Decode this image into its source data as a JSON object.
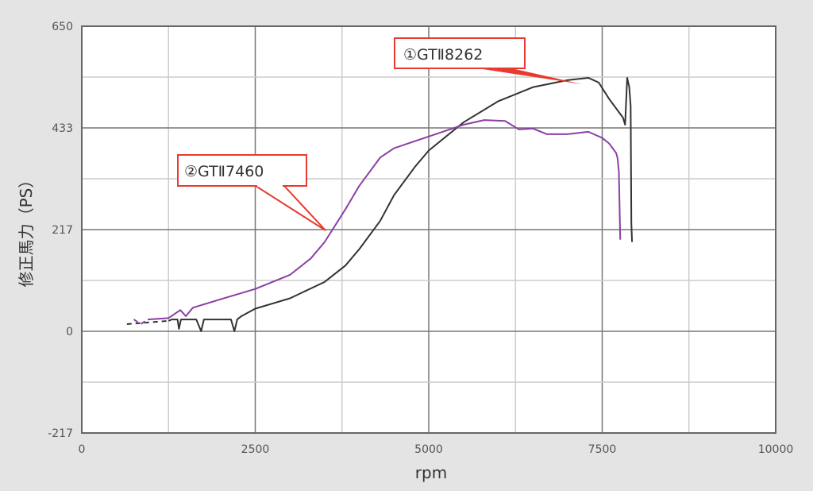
{
  "chart_data": {
    "type": "line",
    "title": "",
    "xlabel": "rpm",
    "ylabel": "修正馬力（PS）",
    "xlim": [
      0,
      10000
    ],
    "ylim": [
      -217,
      650
    ],
    "x_ticks": [
      "0",
      "2500",
      "5000",
      "7500",
      "10000"
    ],
    "y_ticks": [
      "650",
      "433",
      "217",
      "0",
      "-217"
    ],
    "grid": true,
    "legend": "none (callout labels)",
    "series": [
      {
        "name": "①GT II 8262",
        "color": "#333333",
        "points": [
          [
            650,
            15
          ],
          [
            1250,
            22
          ],
          [
            1300,
            25
          ],
          [
            1380,
            25
          ],
          [
            1400,
            5
          ],
          [
            1430,
            25
          ],
          [
            1650,
            25
          ],
          [
            1720,
            0
          ],
          [
            1760,
            25
          ],
          [
            2150,
            25
          ],
          [
            2200,
            0
          ],
          [
            2240,
            25
          ],
          [
            2300,
            32
          ],
          [
            2500,
            48
          ],
          [
            3000,
            70
          ],
          [
            3500,
            105
          ],
          [
            3800,
            140
          ],
          [
            4000,
            175
          ],
          [
            4300,
            235
          ],
          [
            4500,
            290
          ],
          [
            4800,
            350
          ],
          [
            5000,
            385
          ],
          [
            5500,
            445
          ],
          [
            6000,
            490
          ],
          [
            6500,
            520
          ],
          [
            7000,
            535
          ],
          [
            7300,
            540
          ],
          [
            7450,
            530
          ],
          [
            7600,
            495
          ],
          [
            7750,
            465
          ],
          [
            7800,
            455
          ],
          [
            7830,
            440
          ],
          [
            7860,
            540
          ],
          [
            7890,
            520
          ],
          [
            7910,
            480
          ],
          [
            7920,
            230
          ],
          [
            7930,
            190
          ]
        ]
      },
      {
        "name": "②GT II 7460",
        "color": "#8b3fa3",
        "points": [
          [
            750,
            25
          ],
          [
            850,
            15
          ],
          [
            950,
            25
          ],
          [
            1250,
            28
          ],
          [
            1350,
            38
          ],
          [
            1420,
            45
          ],
          [
            1500,
            32
          ],
          [
            1600,
            50
          ],
          [
            2000,
            68
          ],
          [
            2500,
            90
          ],
          [
            3000,
            120
          ],
          [
            3300,
            155
          ],
          [
            3500,
            190
          ],
          [
            3800,
            260
          ],
          [
            4000,
            310
          ],
          [
            4300,
            370
          ],
          [
            4500,
            390
          ],
          [
            5000,
            415
          ],
          [
            5500,
            440
          ],
          [
            5800,
            450
          ],
          [
            6100,
            448
          ],
          [
            6300,
            430
          ],
          [
            6500,
            432
          ],
          [
            6700,
            420
          ],
          [
            7000,
            420
          ],
          [
            7300,
            425
          ],
          [
            7500,
            412
          ],
          [
            7600,
            400
          ],
          [
            7700,
            380
          ],
          [
            7720,
            370
          ],
          [
            7740,
            340
          ],
          [
            7760,
            195
          ]
        ]
      }
    ],
    "annotations": [
      {
        "text": "①GT II 8262",
        "points_to": [
          7300,
          540
        ]
      },
      {
        "text": "②GT II 7460",
        "points_to": [
          3500,
          220
        ]
      }
    ]
  },
  "labels": {
    "y_title": "修正馬力（PS）",
    "x_title": "rpm",
    "callout1": "①GTⅡ8262",
    "callout2": "②GTⅡ7460"
  }
}
